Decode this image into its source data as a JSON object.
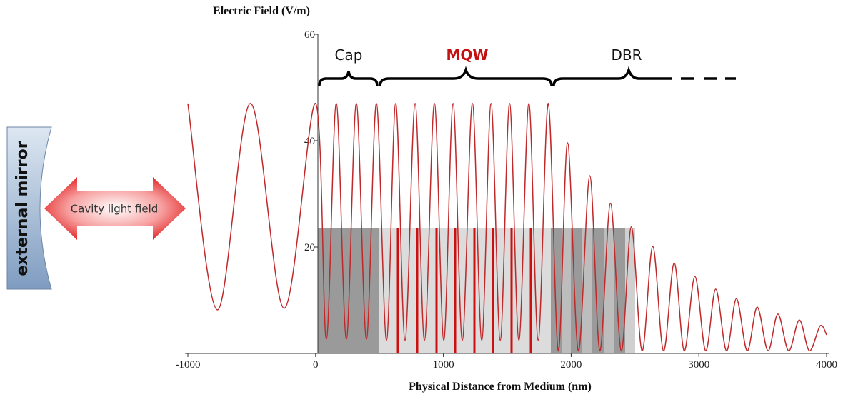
{
  "chart_data": {
    "type": "line",
    "y_label": "Electric Field (V/m)",
    "x_label": "Physical Distance from Medium (nm)",
    "annotations": [
      "Cap",
      "MQW",
      "DBR",
      "Cavity light field",
      "external mirror"
    ],
    "color": "#c0282a",
    "x": [
      -1000,
      -768,
      -510,
      -246,
      0,
      84,
      162,
      241,
      319,
      398,
      476,
      555,
      627,
      700,
      779,
      852,
      930,
      1003,
      1076,
      1148,
      1227,
      1300,
      1373,
      1445,
      1518,
      1591,
      1669,
      1742,
      1821,
      1899,
      1972,
      2056,
      2146,
      2224,
      2308,
      2392,
      2471,
      2555,
      2639,
      2723,
      2807,
      2885,
      2969,
      3053,
      3132,
      3216,
      3294,
      3378,
      3457,
      3541,
      3619,
      3703,
      3787,
      3866,
      3950,
      4000
    ],
    "values": [
      47,
      8.2,
      47,
      8.5,
      47,
      2.7,
      47,
      2.7,
      47,
      2.7,
      47,
      2.5,
      47,
      2.5,
      47,
      2.5,
      47,
      2.5,
      47,
      2.5,
      47,
      2.5,
      47,
      2.5,
      47,
      2.5,
      47,
      2.5,
      47,
      0.5,
      39.6,
      0.5,
      33.4,
      0.5,
      28.2,
      0.5,
      23.8,
      0.5,
      20.1,
      0.5,
      17.0,
      0.5,
      14.5,
      0.5,
      12.1,
      0.5,
      10.3,
      0.5,
      8.7,
      0.5,
      7.4,
      0.5,
      6.3,
      0.5,
      5.2,
      3.5
    ],
    "xlim": [
      -1000,
      4000
    ],
    "xticks": [
      -1000,
      0,
      1000,
      2000,
      3000,
      4000
    ],
    "ylim": [
      0,
      60
    ],
    "yticks": [
      20,
      40,
      60
    ]
  }
}
